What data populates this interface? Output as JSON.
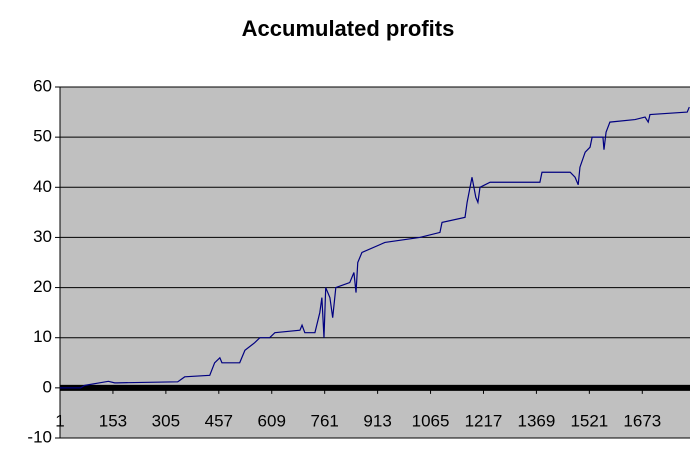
{
  "chart_data": {
    "type": "line",
    "title": "Accumulated profits",
    "x": [
      1,
      60,
      72,
      115,
      140,
      158,
      165,
      339,
      359,
      431,
      445,
      460,
      466,
      517,
      532,
      560,
      575,
      603,
      618,
      690,
      696,
      704,
      733,
      747,
      753,
      759,
      764,
      776,
      784,
      793,
      833,
      845,
      851,
      856,
      868,
      934,
      1034,
      1092,
      1098,
      1164,
      1170,
      1184,
      1195,
      1201,
      1207,
      1236,
      1379,
      1385,
      1466,
      1480,
      1489,
      1494,
      1509,
      1523,
      1529,
      1560,
      1563,
      1569,
      1580,
      1652,
      1681,
      1690,
      1695,
      1802,
      1808
    ],
    "series": [
      {
        "name": "Accumulated profits",
        "color": "#000080",
        "values": [
          0,
          0,
          0.5,
          1,
          1.3,
          1,
          1,
          1.2,
          2.2,
          2.5,
          5,
          6,
          5,
          5,
          7.5,
          9,
          10,
          10,
          11,
          11.5,
          12.5,
          11,
          11,
          15,
          18,
          10,
          20,
          18,
          14,
          20,
          21,
          23,
          19,
          25,
          27,
          29,
          30,
          31,
          33,
          34,
          37,
          42,
          38,
          37,
          40,
          41,
          41,
          43,
          43,
          42,
          40.5,
          44,
          47,
          48,
          50,
          50,
          47.5,
          51,
          53,
          53.5,
          54,
          53,
          54.5,
          55,
          56
        ]
      }
    ],
    "xlim": [
      1,
      1810
    ],
    "xticks": [
      1,
      153,
      305,
      457,
      609,
      761,
      913,
      1065,
      1217,
      1369,
      1521,
      1673
    ],
    "ylim": [
      -10,
      60
    ],
    "yticks": [
      -10,
      0,
      10,
      20,
      30,
      40,
      50,
      60
    ],
    "grid": true
  }
}
